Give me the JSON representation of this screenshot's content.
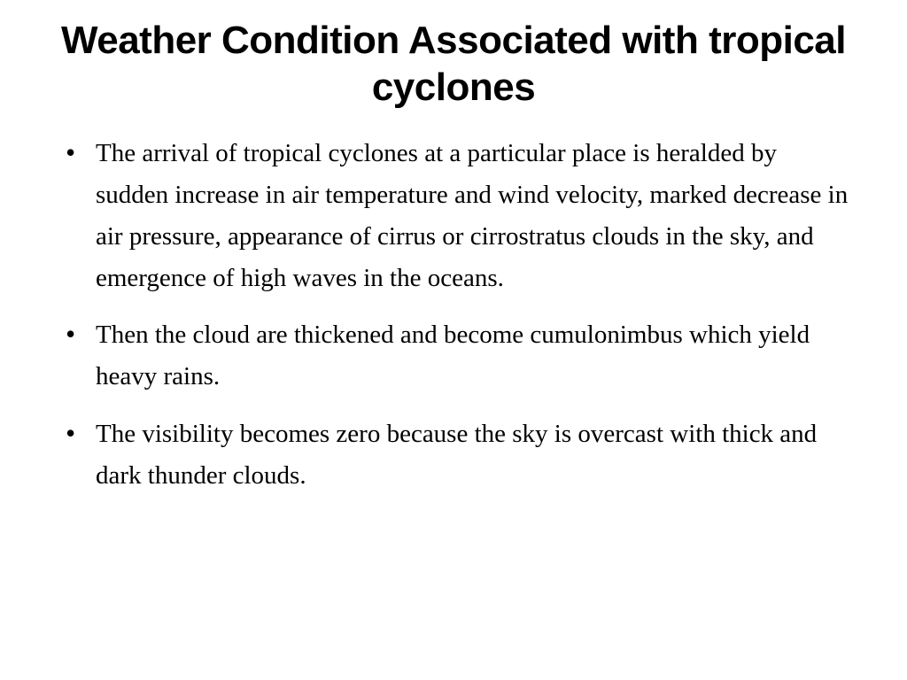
{
  "slide": {
    "title": "Weather Condition Associated with tropical cyclones",
    "title_fontsize": 44,
    "title_color": "#000000",
    "title_font_family": "sans-serif-bold",
    "background_color": "#ffffff",
    "body_fontsize": 29,
    "body_color": "#000000",
    "body_font_family": "serif",
    "line_height": 1.62,
    "bullets": [
      "The arrival of tropical cyclones at a particular place is heralded by sudden increase in air temperature and wind velocity, marked decrease in air pressure, appearance of cirrus or cirrostratus clouds in the sky, and emergence of high waves in the oceans.",
      "Then the cloud are thickened and become cumulonimbus which yield heavy rains.",
      "The visibility becomes zero because the sky is overcast with thick and dark thunder clouds."
    ]
  }
}
